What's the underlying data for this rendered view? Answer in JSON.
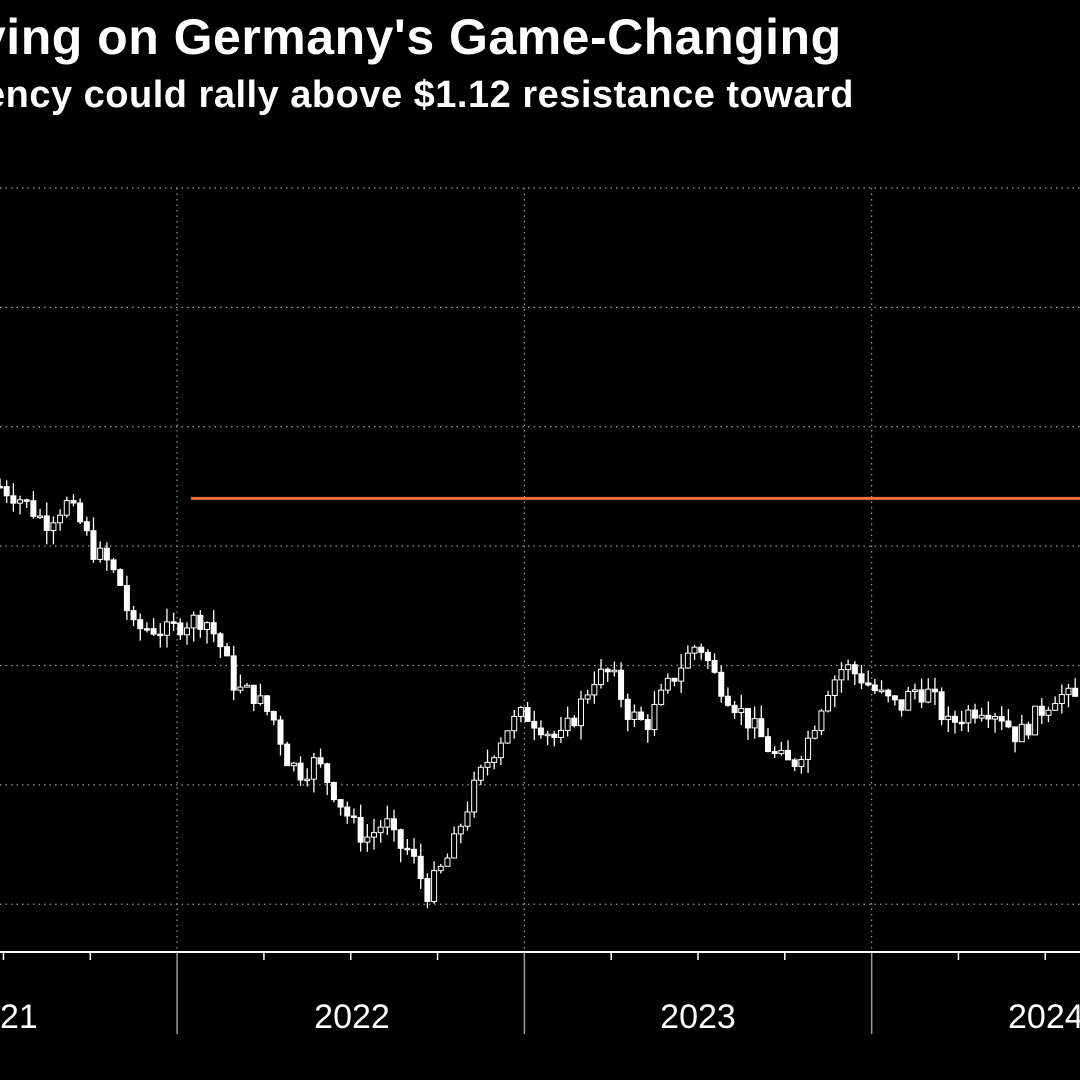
{
  "title": "ying on Germany's Game-Changing",
  "subtitle": "ency could rally above $1.12 resistance toward",
  "colors": {
    "background": "#000000",
    "candle": "#ffffff",
    "gridline": "#9a9a9a",
    "resistance": "#e8743b"
  },
  "chart_data": {
    "type": "candlestick",
    "title": "ying on Germany's Game-Changing",
    "subtitle": "ency could rally above $1.12 resistance toward",
    "xlabel": "",
    "ylabel": "",
    "grid": true,
    "x_tick_labels": [
      "21",
      "2022",
      "2023",
      "2024"
    ],
    "x_range": [
      2021.49,
      2024.6
    ],
    "ylim": [
      0.93,
      1.25
    ],
    "resistance_level": {
      "value": 1.12,
      "start": 2022.04,
      "end": 2024.6
    },
    "path_points": [
      [
        2021.49,
        1.125
      ],
      [
        2021.55,
        1.12
      ],
      [
        2021.62,
        1.11
      ],
      [
        2021.68,
        1.118
      ],
      [
        2021.72,
        1.11
      ],
      [
        2021.76,
        1.098
      ],
      [
        2021.8,
        1.093
      ],
      [
        2021.84,
        1.083
      ],
      [
        2021.87,
        1.065
      ],
      [
        2021.92,
        1.066
      ],
      [
        2021.97,
        1.064
      ],
      [
        2022.02,
        1.068
      ],
      [
        2022.08,
        1.07
      ],
      [
        2022.12,
        1.06
      ],
      [
        2022.17,
        1.04
      ],
      [
        2022.22,
        1.038
      ],
      [
        2022.28,
        1.027
      ],
      [
        2022.32,
        1.01
      ],
      [
        2022.36,
        1.005
      ],
      [
        2022.4,
        1.01
      ],
      [
        2022.45,
        0.998
      ],
      [
        2022.48,
        0.99
      ],
      [
        2022.52,
        0.98
      ],
      [
        2022.55,
        0.978
      ],
      [
        2022.6,
        0.985
      ],
      [
        2022.63,
        0.975
      ],
      [
        2022.67,
        0.972
      ],
      [
        2022.72,
        0.955
      ],
      [
        2022.75,
        0.962
      ],
      [
        2022.79,
        0.972
      ],
      [
        2022.82,
        0.985
      ],
      [
        2022.86,
        1.0
      ],
      [
        2022.9,
        1.012
      ],
      [
        2022.95,
        1.024
      ],
      [
        2023.0,
        1.03
      ],
      [
        2023.05,
        1.025
      ],
      [
        2023.1,
        1.018
      ],
      [
        2023.15,
        1.03
      ],
      [
        2023.2,
        1.045
      ],
      [
        2023.25,
        1.047
      ],
      [
        2023.3,
        1.03
      ],
      [
        2023.35,
        1.025
      ],
      [
        2023.4,
        1.038
      ],
      [
        2023.45,
        1.05
      ],
      [
        2023.5,
        1.06
      ],
      [
        2023.55,
        1.045
      ],
      [
        2023.6,
        1.035
      ],
      [
        2023.67,
        1.022
      ],
      [
        2023.72,
        1.012
      ],
      [
        2023.77,
        1.008
      ],
      [
        2023.82,
        1.02
      ],
      [
        2023.87,
        1.04
      ],
      [
        2023.92,
        1.05
      ],
      [
        2023.97,
        1.045
      ],
      [
        2024.02,
        1.038
      ],
      [
        2024.08,
        1.032
      ],
      [
        2024.12,
        1.04
      ],
      [
        2024.17,
        1.038
      ],
      [
        2024.22,
        1.025
      ],
      [
        2024.27,
        1.03
      ],
      [
        2024.32,
        1.033
      ],
      [
        2024.37,
        1.03
      ],
      [
        2024.42,
        1.02
      ],
      [
        2024.48,
        1.03
      ],
      [
        2024.53,
        1.038
      ],
      [
        2024.6,
        1.035
      ]
    ]
  }
}
